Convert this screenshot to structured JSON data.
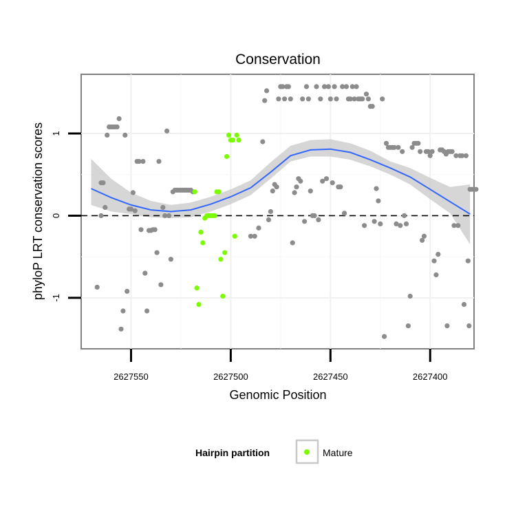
{
  "chart_data": {
    "type": "scatter",
    "title": "Conservation",
    "xlabel": "Genomic Position",
    "ylabel": "phyloP LRT conservation scores",
    "x_reversed": true,
    "xlim": [
      2627575,
      2627378
    ],
    "ylim": [
      -1.62,
      1.72
    ],
    "x_ticks": [
      2627550,
      2627500,
      2627450,
      2627400
    ],
    "x_tick_labels": [
      "2627550",
      "2627500",
      "2627450",
      "2627400"
    ],
    "y_ticks": [
      -1,
      0,
      1
    ],
    "y_tick_labels": [
      "-1",
      "0",
      "1"
    ],
    "grid": true,
    "reference_line": {
      "y": 0,
      "style": "dashed"
    },
    "colors": {
      "other": "#8c8c8c",
      "mature": "#7cfc00",
      "smooth": "#3366ff",
      "band": "#c8c8c8"
    },
    "legend": {
      "title": "Hairpin partition",
      "position": "bottom",
      "entries": [
        {
          "label": "Mature",
          "color": "#7cfc00"
        }
      ]
    },
    "series": [
      {
        "name": "",
        "color": "#8c8c8c",
        "points": [
          [
            2627567,
            -0.87
          ],
          [
            2627565,
            0.0
          ],
          [
            2627565,
            0.4
          ],
          [
            2627564,
            0.4
          ],
          [
            2627563,
            0.1
          ],
          [
            2627562,
            0.98
          ],
          [
            2627561,
            1.08
          ],
          [
            2627560,
            1.08
          ],
          [
            2627559,
            1.08
          ],
          [
            2627558,
            1.08
          ],
          [
            2627557,
            1.08
          ],
          [
            2627556,
            1.18
          ],
          [
            2627555,
            -1.38
          ],
          [
            2627554,
            -1.16
          ],
          [
            2627553,
            0.98
          ],
          [
            2627552,
            -0.92
          ],
          [
            2627551,
            0.08
          ],
          [
            2627550,
            0.08
          ],
          [
            2627549,
            0.28
          ],
          [
            2627548,
            0.06
          ],
          [
            2627547,
            0.66
          ],
          [
            2627546,
            0.66
          ],
          [
            2627545,
            -0.17
          ],
          [
            2627544,
            0.66
          ],
          [
            2627543,
            -0.7
          ],
          [
            2627542,
            -1.16
          ],
          [
            2627541,
            -0.18
          ],
          [
            2627540,
            -0.18
          ],
          [
            2627539,
            -0.17
          ],
          [
            2627538,
            -0.17
          ],
          [
            2627537,
            -0.45
          ],
          [
            2627536,
            0.66
          ],
          [
            2627535,
            -0.84
          ],
          [
            2627534,
            0.1
          ],
          [
            2627533,
            0.0
          ],
          [
            2627532,
            1.03
          ],
          [
            2627531,
            0.0
          ],
          [
            2627530,
            -0.53
          ],
          [
            2627529,
            0.29
          ],
          [
            2627528,
            0.31
          ],
          [
            2627527,
            0.31
          ],
          [
            2627526,
            0.31
          ],
          [
            2627525,
            0.31
          ],
          [
            2627524,
            0.31
          ],
          [
            2627523,
            0.31
          ],
          [
            2627522,
            0.31
          ],
          [
            2627521,
            0.31
          ],
          [
            2627520,
            0.31
          ],
          [
            2627519,
            0.29
          ],
          [
            2627490,
            -0.25
          ],
          [
            2627488,
            -0.25
          ],
          [
            2627486,
            -0.15
          ],
          [
            2627484,
            0.9
          ],
          [
            2627483,
            1.4
          ],
          [
            2627482,
            1.52
          ],
          [
            2627481,
            -0.05
          ],
          [
            2627480,
            0.05
          ],
          [
            2627479,
            0.3
          ],
          [
            2627478,
            0.38
          ],
          [
            2627477,
            0.35
          ],
          [
            2627476,
            1.42
          ],
          [
            2627475,
            1.57
          ],
          [
            2627474,
            1.57
          ],
          [
            2627473,
            1.42
          ],
          [
            2627472,
            1.57
          ],
          [
            2627471,
            1.57
          ],
          [
            2627470,
            1.42
          ],
          [
            2627469,
            -0.33
          ],
          [
            2627468,
            0.28
          ],
          [
            2627467,
            0.35
          ],
          [
            2627466,
            0.45
          ],
          [
            2627465,
            0.42
          ],
          [
            2627464,
            1.42
          ],
          [
            2627463,
            -0.07
          ],
          [
            2627462,
            1.57
          ],
          [
            2627461,
            1.42
          ],
          [
            2627460,
            0.3
          ],
          [
            2627459,
            0.0
          ],
          [
            2627458,
            0.0
          ],
          [
            2627457,
            1.57
          ],
          [
            2627456,
            -0.05
          ],
          [
            2627455,
            1.42
          ],
          [
            2627454,
            0.42
          ],
          [
            2627453,
            1.57
          ],
          [
            2627452,
            0.45
          ],
          [
            2627451,
            1.57
          ],
          [
            2627450,
            1.42
          ],
          [
            2627449,
            0.4
          ],
          [
            2627448,
            1.57
          ],
          [
            2627447,
            1.42
          ],
          [
            2627446,
            0.35
          ],
          [
            2627445,
            0.35
          ],
          [
            2627444,
            1.57
          ],
          [
            2627443,
            0.03
          ],
          [
            2627442,
            1.57
          ],
          [
            2627441,
            1.42
          ],
          [
            2627440,
            1.42
          ],
          [
            2627439,
            1.57
          ],
          [
            2627438,
            1.42
          ],
          [
            2627437,
            1.57
          ],
          [
            2627436,
            1.42
          ],
          [
            2627435,
            1.42
          ],
          [
            2627434,
            1.42
          ],
          [
            2627433,
            -0.12
          ],
          [
            2627432,
            1.48
          ],
          [
            2627431,
            1.42
          ],
          [
            2627430,
            1.33
          ],
          [
            2627429,
            1.33
          ],
          [
            2627428,
            -0.07
          ],
          [
            2627427,
            0.33
          ],
          [
            2627426,
            0.18
          ],
          [
            2627425,
            -0.1
          ],
          [
            2627424,
            1.42
          ],
          [
            2627423,
            -1.47
          ],
          [
            2627422,
            0.88
          ],
          [
            2627421,
            0.83
          ],
          [
            2627420,
            0.83
          ],
          [
            2627419,
            0.83
          ],
          [
            2627418,
            0.83
          ],
          [
            2627417,
            -0.1
          ],
          [
            2627416,
            0.83
          ],
          [
            2627415,
            -0.12
          ],
          [
            2627414,
            0.78
          ],
          [
            2627413,
            0.0
          ],
          [
            2627412,
            -0.1
          ],
          [
            2627411,
            -1.34
          ],
          [
            2627410,
            -0.98
          ],
          [
            2627409,
            0.83
          ],
          [
            2627408,
            0.88
          ],
          [
            2627407,
            0.88
          ],
          [
            2627406,
            0.88
          ],
          [
            2627405,
            0.78
          ],
          [
            2627404,
            -0.3
          ],
          [
            2627403,
            -0.25
          ],
          [
            2627402,
            0.78
          ],
          [
            2627401,
            0.78
          ],
          [
            2627400,
            0.73
          ],
          [
            2627399,
            0.78
          ],
          [
            2627398,
            -0.55
          ],
          [
            2627397,
            -0.72
          ],
          [
            2627396,
            -0.47
          ],
          [
            2627395,
            0.8
          ],
          [
            2627394,
            0.8
          ],
          [
            2627393,
            0.78
          ],
          [
            2627392,
            0.75
          ],
          [
            2627391,
            0.78
          ],
          [
            2627390,
            0.78
          ],
          [
            2627389,
            0.78
          ],
          [
            2627388,
            -0.12
          ],
          [
            2627387,
            0.73
          ],
          [
            2627386,
            -0.12
          ],
          [
            2627385,
            0.73
          ],
          [
            2627384,
            0.73
          ],
          [
            2627383,
            -1.08
          ],
          [
            2627382,
            0.73
          ],
          [
            2627381,
            -0.55
          ],
          [
            2627380,
            0.32
          ],
          [
            2627379,
            0.32
          ],
          [
            2627378,
            0.32
          ],
          [
            2627377,
            0.32
          ],
          [
            2627380.5,
            -1.34
          ],
          [
            2627391.5,
            -1.34
          ]
        ]
      },
      {
        "name": "Mature",
        "color": "#7cfc00",
        "points": [
          [
            2627518,
            0.29
          ],
          [
            2627517,
            -0.88
          ],
          [
            2627516,
            -1.08
          ],
          [
            2627515,
            -0.2
          ],
          [
            2627514,
            -0.33
          ],
          [
            2627513,
            -0.03
          ],
          [
            2627512,
            0.0
          ],
          [
            2627511,
            0.0
          ],
          [
            2627510,
            0.0
          ],
          [
            2627509,
            0.0
          ],
          [
            2627508,
            0.0
          ],
          [
            2627507,
            0.29
          ],
          [
            2627506,
            0.29
          ],
          [
            2627505,
            -0.53
          ],
          [
            2627504,
            -0.98
          ],
          [
            2627503,
            -0.45
          ],
          [
            2627502,
            0.72
          ],
          [
            2627501,
            0.98
          ],
          [
            2627500,
            0.92
          ],
          [
            2627499,
            0.92
          ],
          [
            2627498,
            -0.25
          ],
          [
            2627497,
            0.98
          ],
          [
            2627496,
            0.92
          ]
        ]
      }
    ],
    "smooth": {
      "x": [
        2627570,
        2627560,
        2627550,
        2627540,
        2627530,
        2627520,
        2627510,
        2627500,
        2627490,
        2627480,
        2627470,
        2627460,
        2627450,
        2627440,
        2627430,
        2627420,
        2627410,
        2627400,
        2627390,
        2627380
      ],
      "y": [
        0.33,
        0.22,
        0.13,
        0.07,
        0.05,
        0.07,
        0.14,
        0.23,
        0.34,
        0.53,
        0.73,
        0.8,
        0.81,
        0.77,
        0.68,
        0.58,
        0.47,
        0.32,
        0.17,
        0.02
      ],
      "lower": [
        0.13,
        0.05,
        0.02,
        -0.02,
        -0.03,
        -0.02,
        0.05,
        0.14,
        0.25,
        0.45,
        0.66,
        0.72,
        0.72,
        0.68,
        0.6,
        0.5,
        0.38,
        0.2,
        0.03,
        -0.35
      ],
      "upper": [
        0.69,
        0.45,
        0.28,
        0.18,
        0.13,
        0.16,
        0.23,
        0.32,
        0.43,
        0.65,
        0.85,
        0.92,
        0.93,
        0.88,
        0.79,
        0.66,
        0.58,
        0.46,
        0.35,
        0.38
      ]
    }
  }
}
